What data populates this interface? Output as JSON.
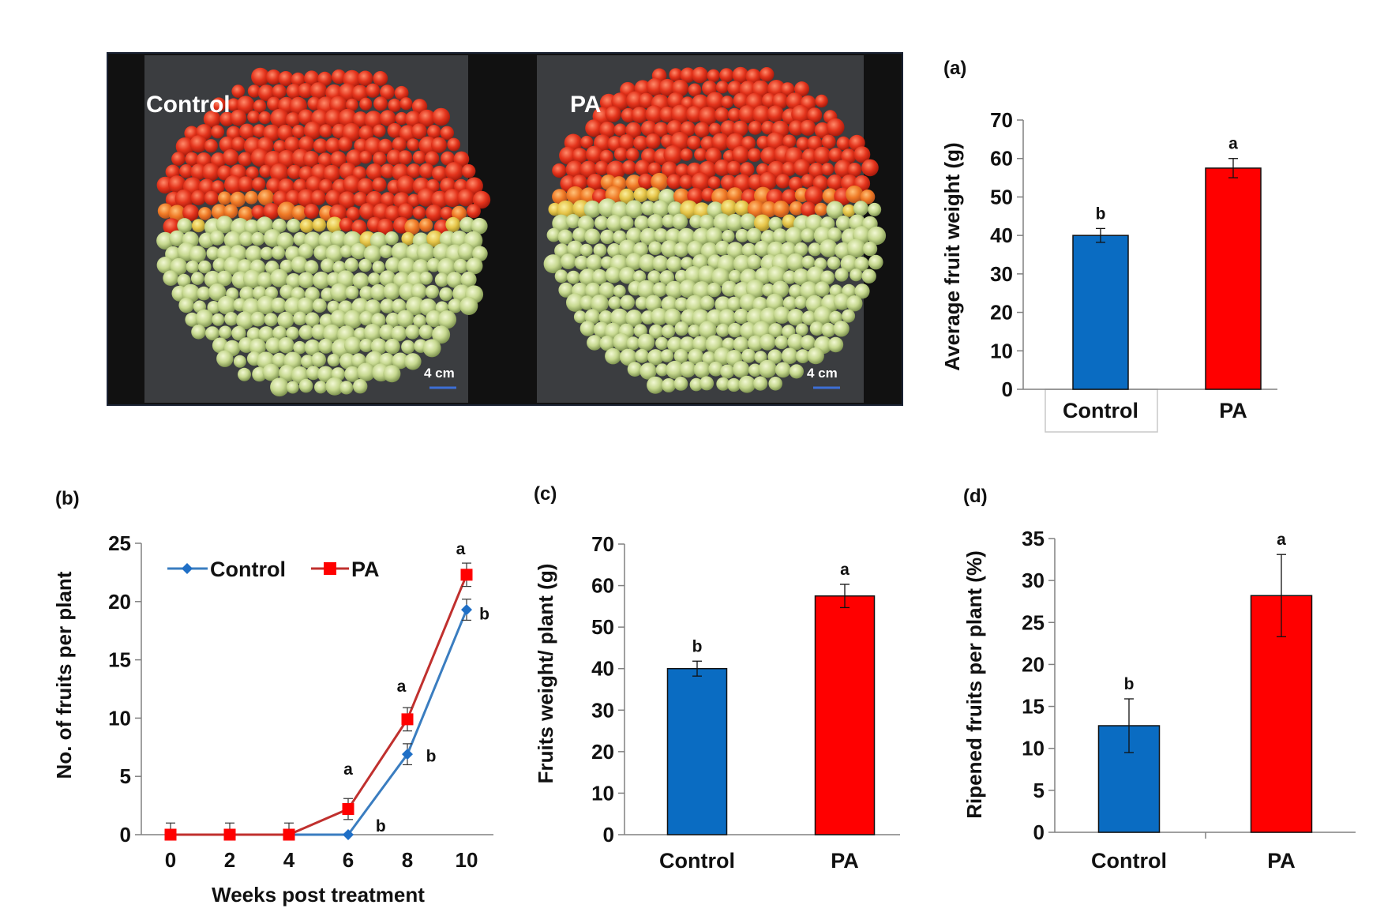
{
  "photo_panel": {
    "left_label": "Control",
    "right_label": "PA",
    "left_scale": "4 cm",
    "right_scale": "4 cm"
  },
  "colors": {
    "control": "#0a6cc2",
    "pa": "#ff0000",
    "control_line": "#3a7dc0",
    "pa_line": "#c0302e",
    "axis": "#808080"
  },
  "chart_data": [
    {
      "id": "a",
      "panel_label": "(a)",
      "type": "bar",
      "categories": [
        "Control",
        "PA"
      ],
      "values": [
        40,
        57.5
      ],
      "errors": [
        1.8,
        2.5
      ],
      "sig_letters": [
        "b",
        "a"
      ],
      "ylabel": "Average fruit weight (g)",
      "ylim": [
        0,
        70
      ],
      "yticks": [
        "0",
        "10",
        "20",
        "30",
        "40",
        "50",
        "60",
        "70"
      ]
    },
    {
      "id": "b",
      "panel_label": "(b)",
      "type": "line",
      "x": [
        0,
        2,
        4,
        6,
        8,
        10
      ],
      "xticks": [
        "0",
        "2",
        "4",
        "6",
        "8",
        "10"
      ],
      "series": [
        {
          "name": "Control",
          "values": [
            0,
            0,
            0,
            0,
            6.9,
            19.3
          ],
          "errors": [
            0,
            0,
            0,
            0,
            0.9,
            0.9
          ]
        },
        {
          "name": "PA",
          "values": [
            0,
            0,
            0,
            2.2,
            9.9,
            22.3
          ],
          "errors": [
            1.0,
            1.0,
            1.0,
            0.9,
            1.0,
            1.0
          ]
        }
      ],
      "annotations": [
        {
          "text": "a",
          "x": 6,
          "y": 5.7
        },
        {
          "text": "b",
          "x": 7.1,
          "y": 0.8
        },
        {
          "text": "a",
          "x": 7.8,
          "y": 12.8
        },
        {
          "text": "b",
          "x": 8.8,
          "y": 6.8
        },
        {
          "text": "a",
          "x": 9.8,
          "y": 24.6
        },
        {
          "text": "b",
          "x": 10.6,
          "y": 19.0
        }
      ],
      "xlabel": "Weeks post treatment",
      "ylabel": "No. of fruits per plant",
      "ylim": [
        0,
        25
      ],
      "yticks": [
        "0",
        "5",
        "10",
        "15",
        "20",
        "25"
      ],
      "legend": "top-left"
    },
    {
      "id": "c",
      "panel_label": "(c)",
      "type": "bar",
      "categories": [
        "Control",
        "PA"
      ],
      "values": [
        40,
        57.5
      ],
      "errors": [
        1.8,
        2.8
      ],
      "sig_letters": [
        "b",
        "a"
      ],
      "ylabel": "Fruits weight/ plant (g)",
      "ylim": [
        0,
        70
      ],
      "yticks": [
        "0",
        "10",
        "20",
        "30",
        "40",
        "50",
        "60",
        "70"
      ]
    },
    {
      "id": "d",
      "panel_label": "(d)",
      "type": "bar",
      "categories": [
        "Control",
        "PA"
      ],
      "values": [
        12.7,
        28.2
      ],
      "errors": [
        3.2,
        4.9
      ],
      "sig_letters": [
        "b",
        "a"
      ],
      "ylabel": "Ripened fruits per plant (%)",
      "ylim": [
        0,
        35
      ],
      "yticks": [
        "0",
        "5",
        "10",
        "15",
        "20",
        "25",
        "30",
        "35"
      ]
    }
  ]
}
